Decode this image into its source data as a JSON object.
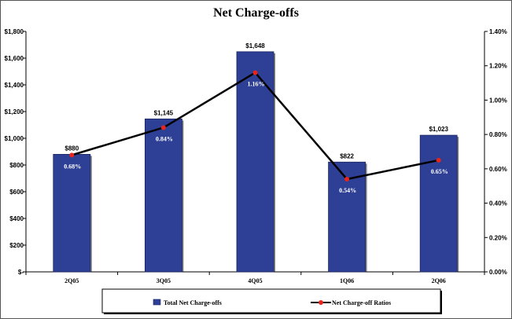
{
  "chart_data": {
    "type": "bar",
    "title": "Net Charge-offs",
    "categories": [
      "2Q05",
      "3Q05",
      "4Q05",
      "1Q06",
      "2Q06"
    ],
    "series": [
      {
        "name": "Total Net Charge-offs",
        "type": "bar",
        "axis": "left",
        "values": [
          880,
          1145,
          1648,
          822,
          1023
        ],
        "labels": [
          "$880",
          "$1,145",
          "$1,648",
          "$822",
          "$1,023"
        ],
        "color": "#2E3F96"
      },
      {
        "name": "Net Charge-off Ratios",
        "type": "line",
        "axis": "right",
        "values": [
          0.68,
          0.84,
          1.16,
          0.54,
          0.65
        ],
        "labels": [
          "0.68%",
          "0.84%",
          "1.16%",
          "0.54%",
          "0.65%"
        ],
        "color": "#000000",
        "marker_color": "#E8241C"
      }
    ],
    "y_left": {
      "min": 0,
      "max": 1800,
      "ticks": [
        0,
        200,
        400,
        600,
        800,
        1000,
        1200,
        1400,
        1600,
        1800
      ],
      "tick_labels": [
        "$-",
        "$200",
        "$400",
        "$600",
        "$800",
        "$1,000",
        "$1,200",
        "$1,400",
        "$1,600",
        "$1,800"
      ]
    },
    "y_right": {
      "min": 0,
      "max": 1.4,
      "ticks": [
        0,
        0.2,
        0.4,
        0.6,
        0.8,
        1.0,
        1.2,
        1.4
      ],
      "tick_labels": [
        "0.00%",
        "0.20%",
        "0.40%",
        "0.60%",
        "0.80%",
        "1.00%",
        "1.20%",
        "1.40%"
      ]
    },
    "legend": {
      "position": "bottom",
      "items": [
        "Total Net Charge-offs",
        "Net Charge-off Ratios"
      ]
    },
    "grid": false
  }
}
